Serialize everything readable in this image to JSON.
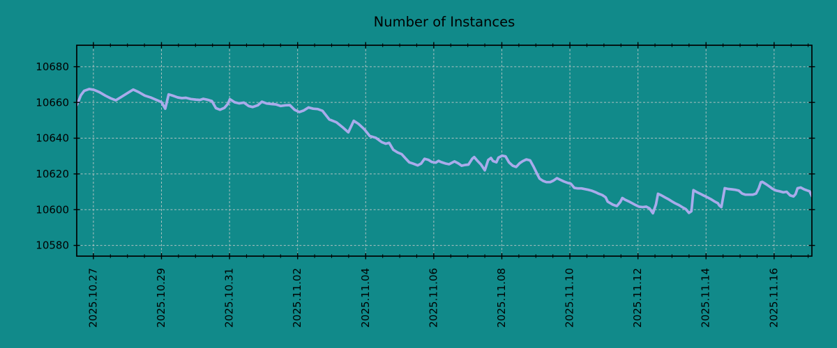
{
  "title": "Number of Instances",
  "colors": {
    "background": "#118a8a",
    "line": "#a9abeb",
    "grid": "#cccccc",
    "axis": "#000000",
    "text": "#000000"
  },
  "chart_data": {
    "type": "line",
    "title": "Number of Instances",
    "xlabel": "",
    "ylabel": "",
    "legend": "none",
    "grid": true,
    "grid_style": "dashed",
    "xlim_days": [
      0,
      21.6
    ],
    "ylim": [
      10574,
      10692
    ],
    "y_ticks": [
      10580,
      10600,
      10620,
      10640,
      10660,
      10680
    ],
    "x_tick_labels": [
      "2025.10.27",
      "2025.10.29",
      "2025.10.31",
      "2025.11.02",
      "2025.11.04",
      "2025.11.06",
      "2025.11.08",
      "2025.11.10",
      "2025.11.12",
      "2025.11.14",
      "2025.11.16"
    ],
    "x_tick_positions_days": [
      0.49,
      2.49,
      4.49,
      6.49,
      8.49,
      10.49,
      12.49,
      14.49,
      16.49,
      18.49,
      20.49
    ],
    "x_minor_tick_interval_days": 0.5,
    "series": [
      {
        "name": "instances",
        "color": "#a9abeb",
        "points": [
          [
            0.0,
            10658.5
          ],
          [
            0.06,
            10661.0
          ],
          [
            0.12,
            10664.0
          ],
          [
            0.22,
            10666.5
          ],
          [
            0.37,
            10667.5
          ],
          [
            0.51,
            10667.0
          ],
          [
            0.67,
            10665.7
          ],
          [
            0.84,
            10663.8
          ],
          [
            1.0,
            10662.3
          ],
          [
            1.15,
            10661.2
          ],
          [
            1.33,
            10663.3
          ],
          [
            1.49,
            10665.2
          ],
          [
            1.66,
            10667.2
          ],
          [
            1.82,
            10665.8
          ],
          [
            2.0,
            10663.8
          ],
          [
            2.17,
            10662.8
          ],
          [
            2.33,
            10661.5
          ],
          [
            2.49,
            10660.2
          ],
          [
            2.6,
            10656.5
          ],
          [
            2.7,
            10664.5
          ],
          [
            2.82,
            10663.8
          ],
          [
            2.97,
            10662.8
          ],
          [
            3.09,
            10662.4
          ],
          [
            3.21,
            10662.6
          ],
          [
            3.35,
            10661.9
          ],
          [
            3.5,
            10661.6
          ],
          [
            3.62,
            10661.4
          ],
          [
            3.72,
            10662.0
          ],
          [
            3.84,
            10661.5
          ],
          [
            3.97,
            10660.8
          ],
          [
            4.09,
            10656.8
          ],
          [
            4.21,
            10655.9
          ],
          [
            4.34,
            10657.0
          ],
          [
            4.44,
            10659.2
          ],
          [
            4.5,
            10661.8
          ],
          [
            4.64,
            10660.1
          ],
          [
            4.77,
            10659.5
          ],
          [
            4.91,
            10659.9
          ],
          [
            5.05,
            10658.0
          ],
          [
            5.17,
            10657.4
          ],
          [
            5.32,
            10658.4
          ],
          [
            5.44,
            10660.4
          ],
          [
            5.58,
            10659.4
          ],
          [
            5.73,
            10659.1
          ],
          [
            5.85,
            10658.9
          ],
          [
            5.99,
            10658.0
          ],
          [
            6.13,
            10658.4
          ],
          [
            6.26,
            10658.5
          ],
          [
            6.4,
            10655.9
          ],
          [
            6.54,
            10654.6
          ],
          [
            6.67,
            10655.5
          ],
          [
            6.81,
            10657.2
          ],
          [
            6.95,
            10656.5
          ],
          [
            7.08,
            10656.3
          ],
          [
            7.22,
            10655.3
          ],
          [
            7.42,
            10650.5
          ],
          [
            7.63,
            10648.9
          ],
          [
            7.83,
            10645.8
          ],
          [
            7.98,
            10643.3
          ],
          [
            8.14,
            10649.7
          ],
          [
            8.28,
            10648.0
          ],
          [
            8.45,
            10645.0
          ],
          [
            8.61,
            10641.2
          ],
          [
            8.79,
            10640.2
          ],
          [
            8.96,
            10637.8
          ],
          [
            9.08,
            10636.9
          ],
          [
            9.18,
            10637.4
          ],
          [
            9.3,
            10633.5
          ],
          [
            9.43,
            10632.0
          ],
          [
            9.55,
            10631.0
          ],
          [
            9.67,
            10628.5
          ],
          [
            9.77,
            10626.5
          ],
          [
            9.88,
            10625.8
          ],
          [
            10.02,
            10624.8
          ],
          [
            10.12,
            10625.8
          ],
          [
            10.22,
            10628.5
          ],
          [
            10.33,
            10627.9
          ],
          [
            10.43,
            10626.7
          ],
          [
            10.55,
            10626.3
          ],
          [
            10.63,
            10627.3
          ],
          [
            10.7,
            10626.7
          ],
          [
            10.84,
            10625.8
          ],
          [
            10.94,
            10625.4
          ],
          [
            11.1,
            10627.0
          ],
          [
            11.21,
            10625.9
          ],
          [
            11.31,
            10624.6
          ],
          [
            11.41,
            10625.0
          ],
          [
            11.51,
            10625.2
          ],
          [
            11.62,
            10628.5
          ],
          [
            11.68,
            10629.4
          ],
          [
            11.78,
            10627.2
          ],
          [
            11.88,
            10625.2
          ],
          [
            11.99,
            10622.0
          ],
          [
            12.09,
            10627.8
          ],
          [
            12.17,
            10628.9
          ],
          [
            12.23,
            10627.2
          ],
          [
            12.33,
            10626.5
          ],
          [
            12.39,
            10629.1
          ],
          [
            12.5,
            10630.2
          ],
          [
            12.6,
            10629.8
          ],
          [
            12.7,
            10626.5
          ],
          [
            12.81,
            10624.6
          ],
          [
            12.91,
            10623.9
          ],
          [
            13.01,
            10625.9
          ],
          [
            13.11,
            10627.2
          ],
          [
            13.21,
            10628.1
          ],
          [
            13.32,
            10627.6
          ],
          [
            13.42,
            10624.2
          ],
          [
            13.52,
            10620.3
          ],
          [
            13.6,
            10617.4
          ],
          [
            13.7,
            10616.1
          ],
          [
            13.8,
            10615.4
          ],
          [
            13.91,
            10615.4
          ],
          [
            14.01,
            10616.3
          ],
          [
            14.11,
            10617.6
          ],
          [
            14.21,
            10616.7
          ],
          [
            14.31,
            10615.8
          ],
          [
            14.42,
            10615.0
          ],
          [
            14.52,
            10614.5
          ],
          [
            14.62,
            10612.2
          ],
          [
            14.72,
            10611.9
          ],
          [
            14.83,
            10611.9
          ],
          [
            14.93,
            10611.5
          ],
          [
            15.03,
            10611.1
          ],
          [
            15.13,
            10610.6
          ],
          [
            15.24,
            10609.8
          ],
          [
            15.34,
            10608.9
          ],
          [
            15.44,
            10608.2
          ],
          [
            15.54,
            10606.9
          ],
          [
            15.6,
            10604.5
          ],
          [
            15.75,
            10602.8
          ],
          [
            15.87,
            10602.0
          ],
          [
            15.97,
            10604.3
          ],
          [
            16.03,
            10606.5
          ],
          [
            16.11,
            10605.6
          ],
          [
            16.22,
            10604.6
          ],
          [
            16.32,
            10603.6
          ],
          [
            16.42,
            10602.6
          ],
          [
            16.52,
            10601.7
          ],
          [
            16.63,
            10601.4
          ],
          [
            16.73,
            10601.7
          ],
          [
            16.83,
            10600.7
          ],
          [
            16.93,
            10598.0
          ],
          [
            17.02,
            10603.0
          ],
          [
            17.08,
            10608.9
          ],
          [
            17.18,
            10608.0
          ],
          [
            17.28,
            10606.9
          ],
          [
            17.38,
            10605.9
          ],
          [
            17.48,
            10604.7
          ],
          [
            17.58,
            10603.6
          ],
          [
            17.69,
            10602.6
          ],
          [
            17.79,
            10601.4
          ],
          [
            17.89,
            10600.4
          ],
          [
            17.99,
            10598.2
          ],
          [
            18.06,
            10599.1
          ],
          [
            18.12,
            10610.9
          ],
          [
            18.22,
            10609.8
          ],
          [
            18.32,
            10608.9
          ],
          [
            18.43,
            10607.8
          ],
          [
            18.53,
            10606.9
          ],
          [
            18.63,
            10605.9
          ],
          [
            18.73,
            10604.7
          ],
          [
            18.84,
            10603.6
          ],
          [
            18.88,
            10602.3
          ],
          [
            18.94,
            10601.4
          ],
          [
            19.04,
            10612.0
          ],
          [
            19.14,
            10611.6
          ],
          [
            19.24,
            10611.4
          ],
          [
            19.35,
            10611.1
          ],
          [
            19.45,
            10610.7
          ],
          [
            19.55,
            10609.0
          ],
          [
            19.65,
            10608.4
          ],
          [
            19.75,
            10608.4
          ],
          [
            19.86,
            10608.4
          ],
          [
            19.96,
            10609.0
          ],
          [
            20.04,
            10612.0
          ],
          [
            20.1,
            10615.3
          ],
          [
            20.14,
            10615.6
          ],
          [
            20.25,
            10614.3
          ],
          [
            20.35,
            10613.0
          ],
          [
            20.45,
            10611.6
          ],
          [
            20.55,
            10610.7
          ],
          [
            20.65,
            10610.3
          ],
          [
            20.76,
            10609.7
          ],
          [
            20.86,
            10610.0
          ],
          [
            20.96,
            10608.0
          ],
          [
            21.06,
            10607.4
          ],
          [
            21.12,
            10608.7
          ],
          [
            21.18,
            10612.0
          ],
          [
            21.27,
            10612.4
          ],
          [
            21.37,
            10611.4
          ],
          [
            21.47,
            10610.7
          ],
          [
            21.53,
            10610.3
          ],
          [
            21.6,
            10607.6
          ]
        ]
      }
    ]
  }
}
